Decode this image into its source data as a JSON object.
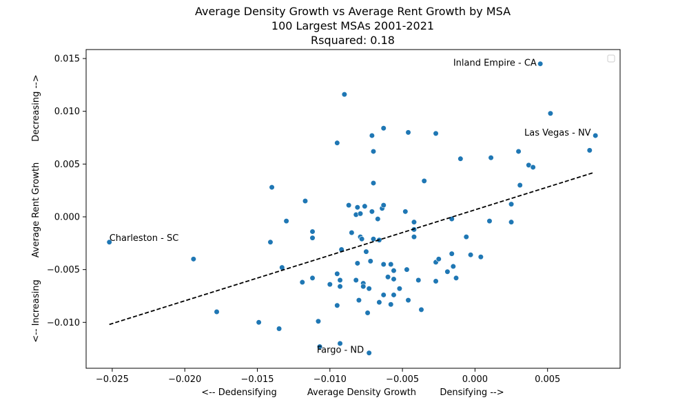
{
  "chart_data": {
    "type": "scatter",
    "title_lines": [
      "Average Density Growth vs Average Rent Growth by MSA",
      "100 Largest MSAs 2001-2021",
      "Rsquared: 0.18"
    ],
    "xlabel": {
      "left": "<-- Dedensifying",
      "center": "Average Density Growth",
      "right": "Densifying -->"
    },
    "ylabel": {
      "bottom": "<-- Increasing",
      "center": "Average Rent Growth",
      "top": "Decreasing -->"
    },
    "xlim": [
      -0.0268,
      0.01
    ],
    "ylim": [
      -0.01435,
      0.01585
    ],
    "xticks": [
      -0.025,
      -0.02,
      -0.015,
      -0.01,
      -0.005,
      0.0,
      0.005
    ],
    "xtick_labels": [
      "−0.025",
      "−0.020",
      "−0.015",
      "−0.010",
      "−0.005",
      "0.000",
      "0.005"
    ],
    "yticks": [
      -0.01,
      -0.005,
      0.0,
      0.005,
      0.01,
      0.015
    ],
    "ytick_labels": [
      "−0.010",
      "−0.005",
      "0.000",
      "0.005",
      "0.010",
      "0.015"
    ],
    "grid": false,
    "legend": {
      "location": "top-right",
      "entries": []
    },
    "marker_color": "#1f77b4",
    "trendline": {
      "style": "dashed",
      "color": "#000000",
      "x": [
        -0.0252,
        0.0082
      ],
      "y": [
        -0.0102,
        0.0042
      ]
    },
    "annotations": [
      {
        "text": "Inland Empire - CA",
        "x": -0.0015,
        "y": 0.0146
      },
      {
        "text": "Las Vegas - NV",
        "x": 0.0034,
        "y": 0.008
      },
      {
        "text": "Charleston - SC",
        "x": -0.0252,
        "y": -0.002
      },
      {
        "text": "Fargo - ND",
        "x": -0.0109,
        "y": -0.0126
      }
    ],
    "points": [
      [
        -0.0252,
        -0.0024
      ],
      [
        -0.0194,
        -0.004
      ],
      [
        -0.0178,
        -0.009
      ],
      [
        -0.0149,
        -0.01
      ],
      [
        -0.0141,
        -0.0024
      ],
      [
        -0.014,
        0.0028
      ],
      [
        -0.0135,
        -0.0106
      ],
      [
        -0.0133,
        -0.0048
      ],
      [
        -0.013,
        -0.0004
      ],
      [
        -0.0119,
        -0.0062
      ],
      [
        -0.0117,
        0.0015
      ],
      [
        -0.0112,
        -0.0014
      ],
      [
        -0.0112,
        -0.002
      ],
      [
        -0.0112,
        -0.0058
      ],
      [
        -0.0108,
        -0.0099
      ],
      [
        -0.0107,
        -0.0123
      ],
      [
        -0.01,
        -0.0064
      ],
      [
        -0.0095,
        -0.0084
      ],
      [
        -0.0095,
        -0.0054
      ],
      [
        -0.0095,
        0.007
      ],
      [
        -0.0093,
        -0.012
      ],
      [
        -0.0093,
        -0.006
      ],
      [
        -0.0093,
        -0.0066
      ],
      [
        -0.0092,
        -0.0031
      ],
      [
        -0.009,
        0.0116
      ],
      [
        -0.0087,
        0.0011
      ],
      [
        -0.0085,
        -0.0015
      ],
      [
        -0.0082,
        0.0002
      ],
      [
        -0.0082,
        -0.006
      ],
      [
        -0.0081,
        -0.0044
      ],
      [
        -0.0081,
        0.0009
      ],
      [
        -0.008,
        -0.0079
      ],
      [
        -0.0079,
        0.0003
      ],
      [
        -0.0079,
        -0.0019
      ],
      [
        -0.0078,
        -0.0021
      ],
      [
        -0.0077,
        -0.0063
      ],
      [
        -0.0077,
        -0.0066
      ],
      [
        -0.0076,
        0.001
      ],
      [
        -0.0075,
        -0.0033
      ],
      [
        -0.0074,
        -0.0091
      ],
      [
        -0.0073,
        -0.0068
      ],
      [
        -0.0072,
        -0.0042
      ],
      [
        -0.0071,
        0.0005
      ],
      [
        -0.0071,
        0.0077
      ],
      [
        -0.007,
        0.0062
      ],
      [
        -0.007,
        0.0032
      ],
      [
        -0.007,
        -0.0021
      ],
      [
        -0.0073,
        -0.0129
      ],
      [
        -0.0067,
        -0.0002
      ],
      [
        -0.0066,
        -0.0081
      ],
      [
        -0.0066,
        -0.0022
      ],
      [
        -0.0064,
        0.0008
      ],
      [
        -0.0063,
        0.0084
      ],
      [
        -0.0063,
        0.0011
      ],
      [
        -0.0063,
        -0.0045
      ],
      [
        -0.0063,
        -0.0074
      ],
      [
        -0.006,
        -0.0057
      ],
      [
        -0.0058,
        -0.0045
      ],
      [
        -0.0058,
        -0.0083
      ],
      [
        -0.0056,
        -0.0074
      ],
      [
        -0.0056,
        -0.0051
      ],
      [
        -0.0056,
        -0.0059
      ],
      [
        -0.0052,
        -0.0068
      ],
      [
        -0.0048,
        0.0005
      ],
      [
        -0.0047,
        -0.005
      ],
      [
        -0.0046,
        0.008
      ],
      [
        -0.0046,
        -0.0079
      ],
      [
        -0.0042,
        -0.0005
      ],
      [
        -0.0042,
        -0.0012
      ],
      [
        -0.0042,
        -0.0019
      ],
      [
        -0.0039,
        -0.006
      ],
      [
        -0.0037,
        -0.0088
      ],
      [
        -0.0035,
        0.0034
      ],
      [
        -0.0027,
        0.0079
      ],
      [
        -0.0027,
        -0.0043
      ],
      [
        -0.0027,
        -0.0061
      ],
      [
        -0.0025,
        -0.004
      ],
      [
        -0.0019,
        -0.0052
      ],
      [
        -0.0016,
        -0.0035
      ],
      [
        -0.0015,
        -0.0047
      ],
      [
        -0.0016,
        -0.0002
      ],
      [
        -0.0013,
        -0.0058
      ],
      [
        -0.001,
        0.0055
      ],
      [
        -0.0006,
        -0.0019
      ],
      [
        -0.0003,
        -0.0036
      ],
      [
        0.0004,
        -0.0038
      ],
      [
        0.0011,
        0.0056
      ],
      [
        0.001,
        -0.0004
      ],
      [
        0.0025,
        -0.0005
      ],
      [
        0.0025,
        0.0012
      ],
      [
        0.003,
        0.0062
      ],
      [
        0.0031,
        0.003
      ],
      [
        0.0037,
        0.0049
      ],
      [
        0.004,
        0.0047
      ],
      [
        0.0045,
        0.0145
      ],
      [
        0.0052,
        0.0098
      ],
      [
        0.0079,
        0.0063
      ],
      [
        0.0083,
        0.0077
      ]
    ]
  }
}
